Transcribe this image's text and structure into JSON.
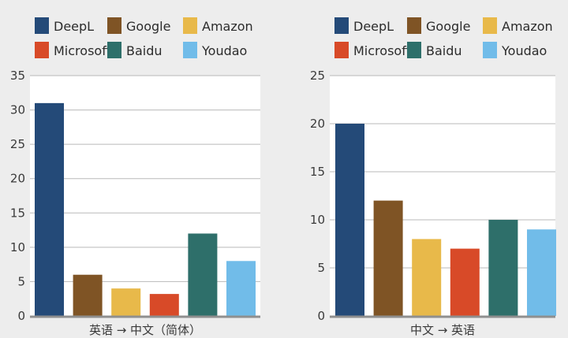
{
  "chart_data": [
    {
      "type": "bar",
      "categories": [
        "DeepL",
        "Google",
        "Amazon",
        "Microsoft",
        "Baidu",
        "Youdao"
      ],
      "values": [
        31,
        6,
        4,
        3.2,
        12,
        8
      ],
      "xlabel": "英语 → 中文（简体）",
      "ylabel": "",
      "ylim": [
        0,
        35
      ],
      "yticks": [
        "0",
        "5",
        "10",
        "15",
        "20",
        "25",
        "30",
        "35"
      ],
      "grid": true,
      "legend": "top"
    },
    {
      "type": "bar",
      "categories": [
        "DeepL",
        "Google",
        "Amazon",
        "Microsoft",
        "Baidu",
        "Youdao"
      ],
      "values": [
        20,
        12,
        8,
        7,
        10,
        9
      ],
      "xlabel": "中文 → 英语",
      "ylabel": "",
      "ylim": [
        0,
        25
      ],
      "yticks": [
        "0",
        "5",
        "10",
        "15",
        "20",
        "25"
      ],
      "grid": true,
      "legend": "top"
    }
  ],
  "colors": {
    "DeepL": "#244a78",
    "Google": "#7f5425",
    "Amazon": "#e8b94a",
    "Microsoft": "#d84a28",
    "Baidu": "#2e6f6a",
    "Youdao": "#71bce9"
  }
}
